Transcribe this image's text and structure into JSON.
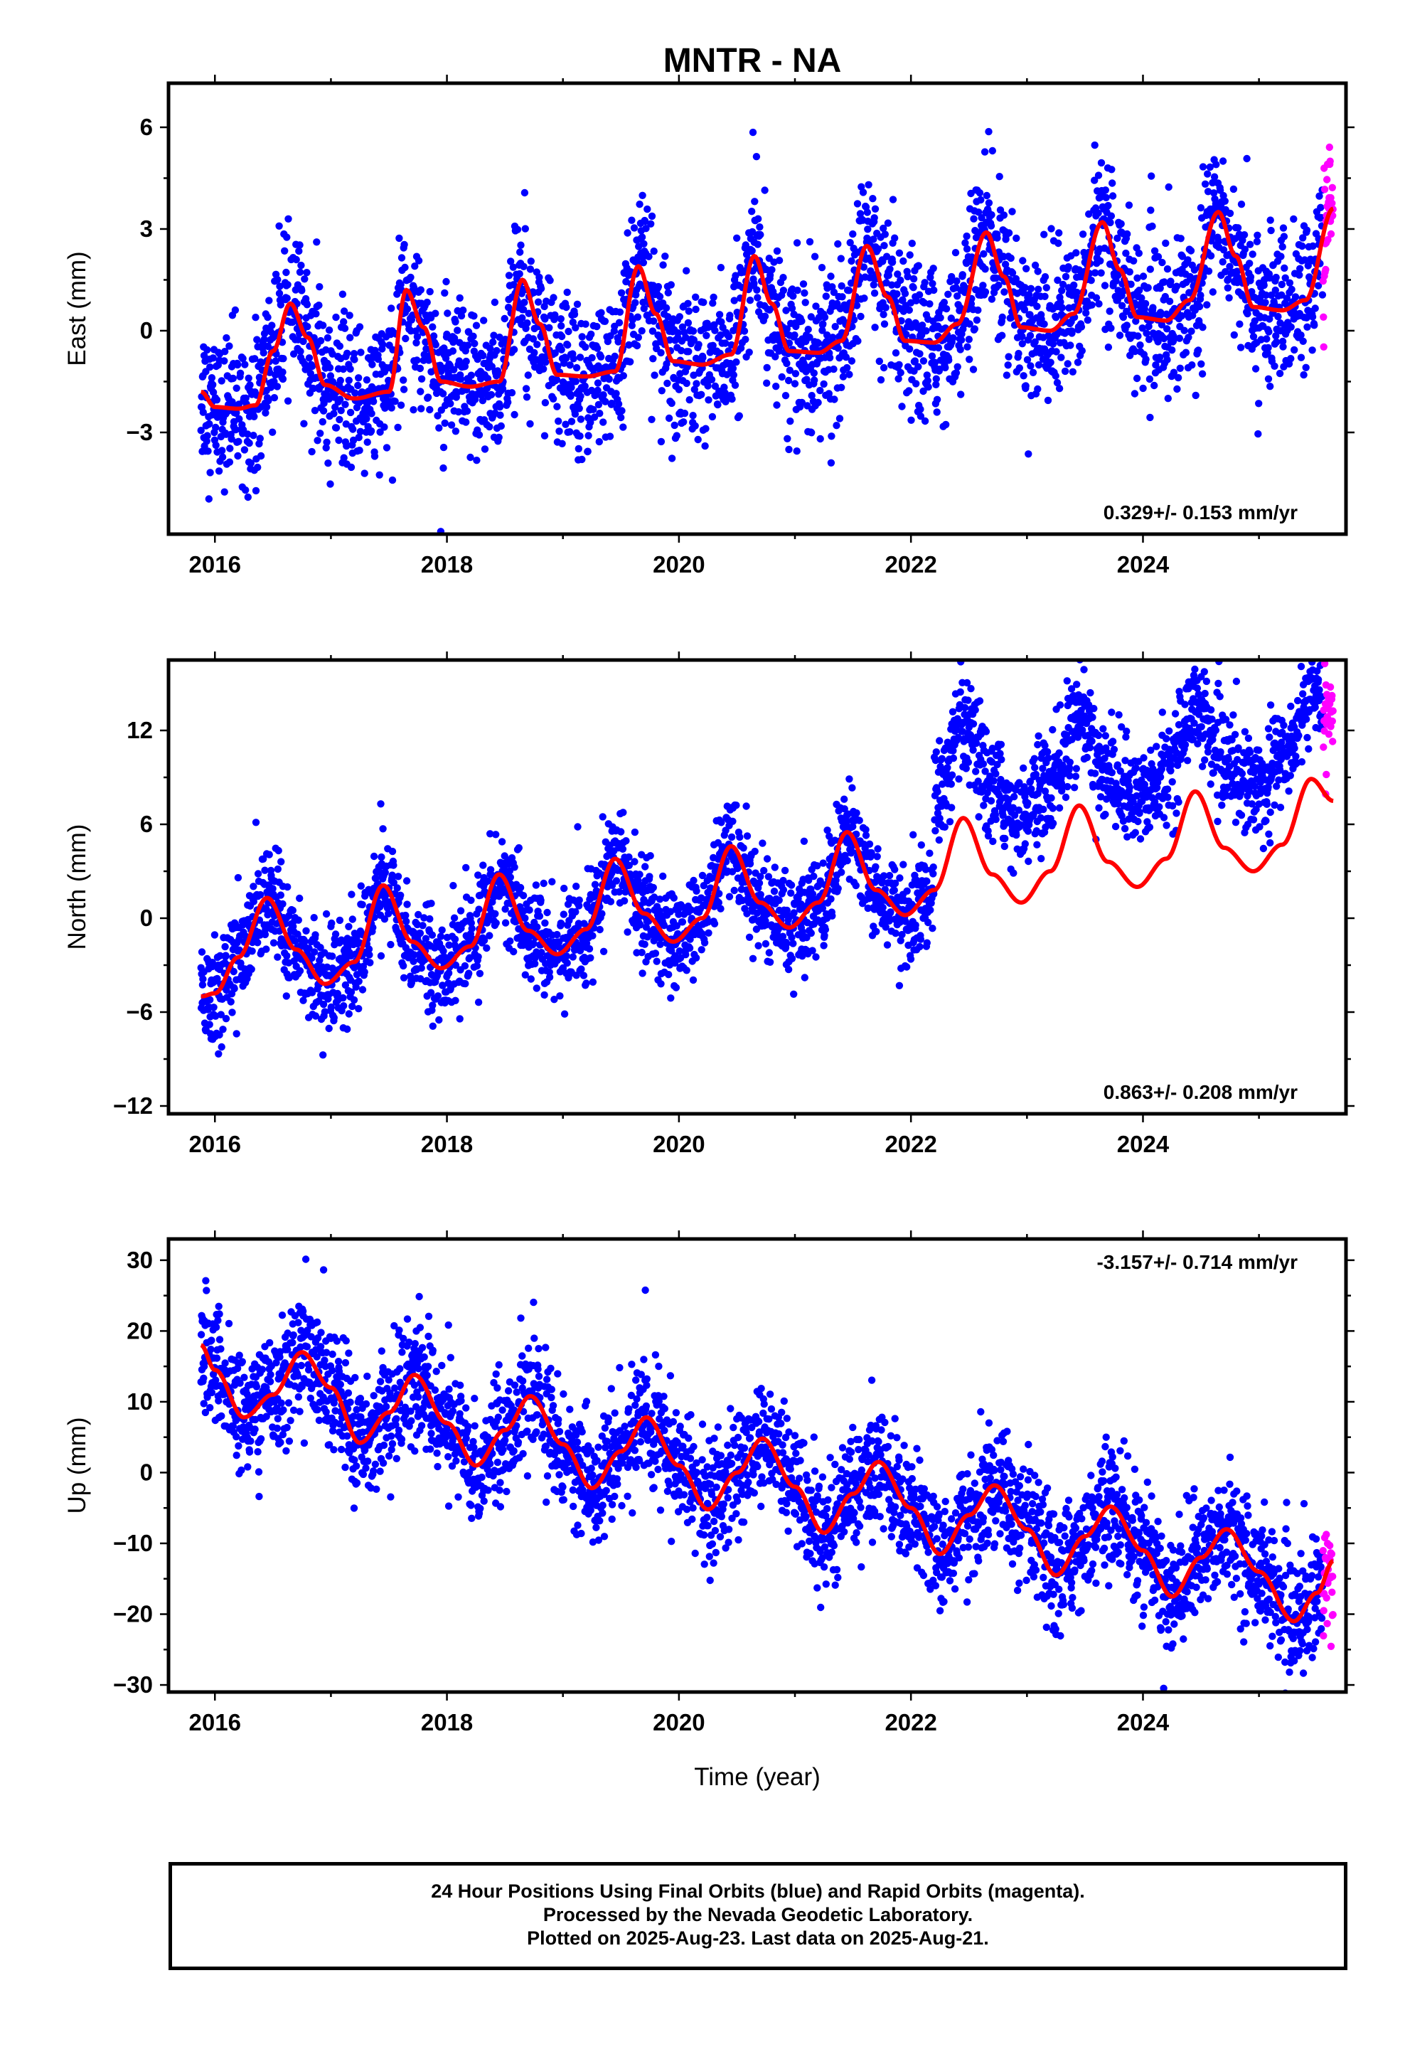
{
  "title": "MNTR - NA",
  "caption": {
    "line1": "24 Hour Positions Using Final Orbits (blue) and Rapid Orbits (magenta).",
    "line2": "Processed by the Nevada Geodetic Laboratory.",
    "line3": "Plotted on 2025-Aug-23. Last data on 2025-Aug-21."
  },
  "colors": {
    "final": "#0000ff",
    "rapid": "#ff00ff",
    "model": "#ff0000",
    "frame": "#000000"
  },
  "chart_data": [
    {
      "type": "scatter",
      "ylabel": "East (mm)",
      "xlabel": "",
      "xlim": [
        2015.6,
        2025.75
      ],
      "ylim": [
        -6.0,
        7.3
      ],
      "xticks": [
        2016,
        2018,
        2020,
        2022,
        2024
      ],
      "yticks": [
        -3,
        0,
        3,
        6
      ],
      "rate_label": "0.329+/- 0.153 mm/yr",
      "rate_position": "bottom-right",
      "data_start": 2015.88,
      "data_end": 2025.64,
      "rapid_start": 2025.55,
      "model_nodes": [
        [
          2015.88,
          -1.8
        ],
        [
          2016.0,
          -2.25
        ],
        [
          2016.2,
          -2.3
        ],
        [
          2016.35,
          -2.2
        ],
        [
          2016.5,
          -0.6
        ],
        [
          2016.65,
          0.8
        ],
        [
          2016.8,
          -0.2
        ],
        [
          2016.95,
          -1.6
        ],
        [
          2017.2,
          -2.0
        ],
        [
          2017.5,
          -1.8
        ],
        [
          2017.65,
          1.2
        ],
        [
          2017.8,
          0.1
        ],
        [
          2017.95,
          -1.5
        ],
        [
          2018.2,
          -1.65
        ],
        [
          2018.45,
          -1.5
        ],
        [
          2018.65,
          1.5
        ],
        [
          2018.8,
          0.2
        ],
        [
          2018.95,
          -1.3
        ],
        [
          2019.2,
          -1.35
        ],
        [
          2019.45,
          -1.2
        ],
        [
          2019.65,
          1.9
        ],
        [
          2019.8,
          0.5
        ],
        [
          2019.95,
          -0.9
        ],
        [
          2020.2,
          -1.0
        ],
        [
          2020.45,
          -0.7
        ],
        [
          2020.65,
          2.2
        ],
        [
          2020.8,
          0.8
        ],
        [
          2020.95,
          -0.6
        ],
        [
          2021.2,
          -0.65
        ],
        [
          2021.4,
          -0.3
        ],
        [
          2021.62,
          2.5
        ],
        [
          2021.8,
          1.0
        ],
        [
          2021.95,
          -0.3
        ],
        [
          2022.2,
          -0.35
        ],
        [
          2022.4,
          0.2
        ],
        [
          2022.65,
          2.9
        ],
        [
          2022.8,
          1.6
        ],
        [
          2022.95,
          0.1
        ],
        [
          2023.2,
          0.0
        ],
        [
          2023.4,
          0.5
        ],
        [
          2023.65,
          3.2
        ],
        [
          2023.8,
          1.8
        ],
        [
          2023.95,
          0.4
        ],
        [
          2024.2,
          0.3
        ],
        [
          2024.4,
          0.9
        ],
        [
          2024.65,
          3.5
        ],
        [
          2024.8,
          2.2
        ],
        [
          2024.95,
          0.7
        ],
        [
          2025.2,
          0.6
        ],
        [
          2025.4,
          0.9
        ],
        [
          2025.64,
          3.6
        ]
      ],
      "scatter_noise": 1.1,
      "trend_mm_per_yr": 0.329,
      "trend_uncertainty_mm_per_yr": 0.153
    },
    {
      "type": "scatter",
      "ylabel": "North (mm)",
      "xlabel": "",
      "xlim": [
        2015.6,
        2025.75
      ],
      "ylim": [
        -12.5,
        16.5
      ],
      "xticks": [
        2016,
        2018,
        2020,
        2022,
        2024
      ],
      "yticks": [
        -12,
        -6,
        0,
        6,
        12
      ],
      "rate_label": "0.863+/- 0.208 mm/yr",
      "rate_position": "bottom-right",
      "data_start": 2015.88,
      "data_end": 2025.64,
      "rapid_start": 2025.55,
      "model_nodes": [
        [
          2015.88,
          -5.0
        ],
        [
          2016.0,
          -4.8
        ],
        [
          2016.2,
          -2.5
        ],
        [
          2016.45,
          1.3
        ],
        [
          2016.7,
          -2.0
        ],
        [
          2016.95,
          -4.2
        ],
        [
          2017.2,
          -2.8
        ],
        [
          2017.45,
          2.1
        ],
        [
          2017.7,
          -1.5
        ],
        [
          2017.95,
          -3.2
        ],
        [
          2018.2,
          -1.8
        ],
        [
          2018.45,
          2.8
        ],
        [
          2018.7,
          -0.8
        ],
        [
          2018.95,
          -2.3
        ],
        [
          2019.2,
          -0.7
        ],
        [
          2019.45,
          3.8
        ],
        [
          2019.7,
          0.3
        ],
        [
          2019.95,
          -1.5
        ],
        [
          2020.2,
          0.0
        ],
        [
          2020.45,
          4.6
        ],
        [
          2020.7,
          1.0
        ],
        [
          2020.95,
          -0.6
        ],
        [
          2021.2,
          1.0
        ],
        [
          2021.45,
          5.5
        ],
        [
          2021.7,
          1.8
        ],
        [
          2021.95,
          0.2
        ],
        [
          2022.2,
          1.8
        ],
        [
          2022.45,
          6.4
        ],
        [
          2022.7,
          2.8
        ],
        [
          2022.95,
          1.0
        ],
        [
          2023.2,
          3.0
        ],
        [
          2023.45,
          7.2
        ],
        [
          2023.7,
          3.6
        ],
        [
          2023.95,
          2.0
        ],
        [
          2024.2,
          3.8
        ],
        [
          2024.45,
          8.1
        ],
        [
          2024.7,
          4.5
        ],
        [
          2024.95,
          3.0
        ],
        [
          2025.2,
          4.7
        ],
        [
          2025.45,
          8.9
        ],
        [
          2025.64,
          7.5
        ]
      ],
      "offset_after": 2022.2,
      "offset_mm": 5.5,
      "scatter_noise": 1.6,
      "trend_mm_per_yr": 0.863,
      "trend_uncertainty_mm_per_yr": 0.208
    },
    {
      "type": "scatter",
      "ylabel": "Up (mm)",
      "xlabel": "Time (year)",
      "xlim": [
        2015.6,
        2025.75
      ],
      "ylim": [
        -31.0,
        33.0
      ],
      "xticks": [
        2016,
        2018,
        2020,
        2022,
        2024
      ],
      "yticks": [
        -30,
        -20,
        -10,
        0,
        10,
        20,
        30
      ],
      "rate_label": "-3.157+/- 0.714 mm/yr",
      "rate_position": "top-right",
      "data_start": 2015.88,
      "data_end": 2025.64,
      "rapid_start": 2025.55,
      "model_nodes": [
        [
          2015.88,
          18.0
        ],
        [
          2016.0,
          14.5
        ],
        [
          2016.25,
          7.8
        ],
        [
          2016.5,
          11.0
        ],
        [
          2016.75,
          17.0
        ],
        [
          2017.0,
          12.0
        ],
        [
          2017.25,
          4.2
        ],
        [
          2017.5,
          8.5
        ],
        [
          2017.72,
          13.8
        ],
        [
          2018.0,
          7.0
        ],
        [
          2018.25,
          1.0
        ],
        [
          2018.5,
          6.0
        ],
        [
          2018.72,
          10.8
        ],
        [
          2019.0,
          4.0
        ],
        [
          2019.25,
          -2.2
        ],
        [
          2019.5,
          3.0
        ],
        [
          2019.72,
          7.8
        ],
        [
          2020.0,
          1.0
        ],
        [
          2020.25,
          -5.2
        ],
        [
          2020.5,
          0.0
        ],
        [
          2020.72,
          4.8
        ],
        [
          2021.0,
          -2.0
        ],
        [
          2021.25,
          -8.5
        ],
        [
          2021.5,
          -3.0
        ],
        [
          2021.72,
          1.5
        ],
        [
          2022.0,
          -5.0
        ],
        [
          2022.25,
          -11.5
        ],
        [
          2022.5,
          -6.0
        ],
        [
          2022.72,
          -1.8
        ],
        [
          2023.0,
          -8.0
        ],
        [
          2023.25,
          -14.5
        ],
        [
          2023.5,
          -9.0
        ],
        [
          2023.72,
          -4.8
        ],
        [
          2024.0,
          -11.0
        ],
        [
          2024.25,
          -17.5
        ],
        [
          2024.5,
          -12.0
        ],
        [
          2024.72,
          -8.0
        ],
        [
          2025.0,
          -14.0
        ],
        [
          2025.3,
          -21.0
        ],
        [
          2025.5,
          -17.0
        ],
        [
          2025.64,
          -12.5
        ]
      ],
      "scatter_noise": 4.2,
      "trend_mm_per_yr": -3.157,
      "trend_uncertainty_mm_per_yr": 0.714
    }
  ]
}
